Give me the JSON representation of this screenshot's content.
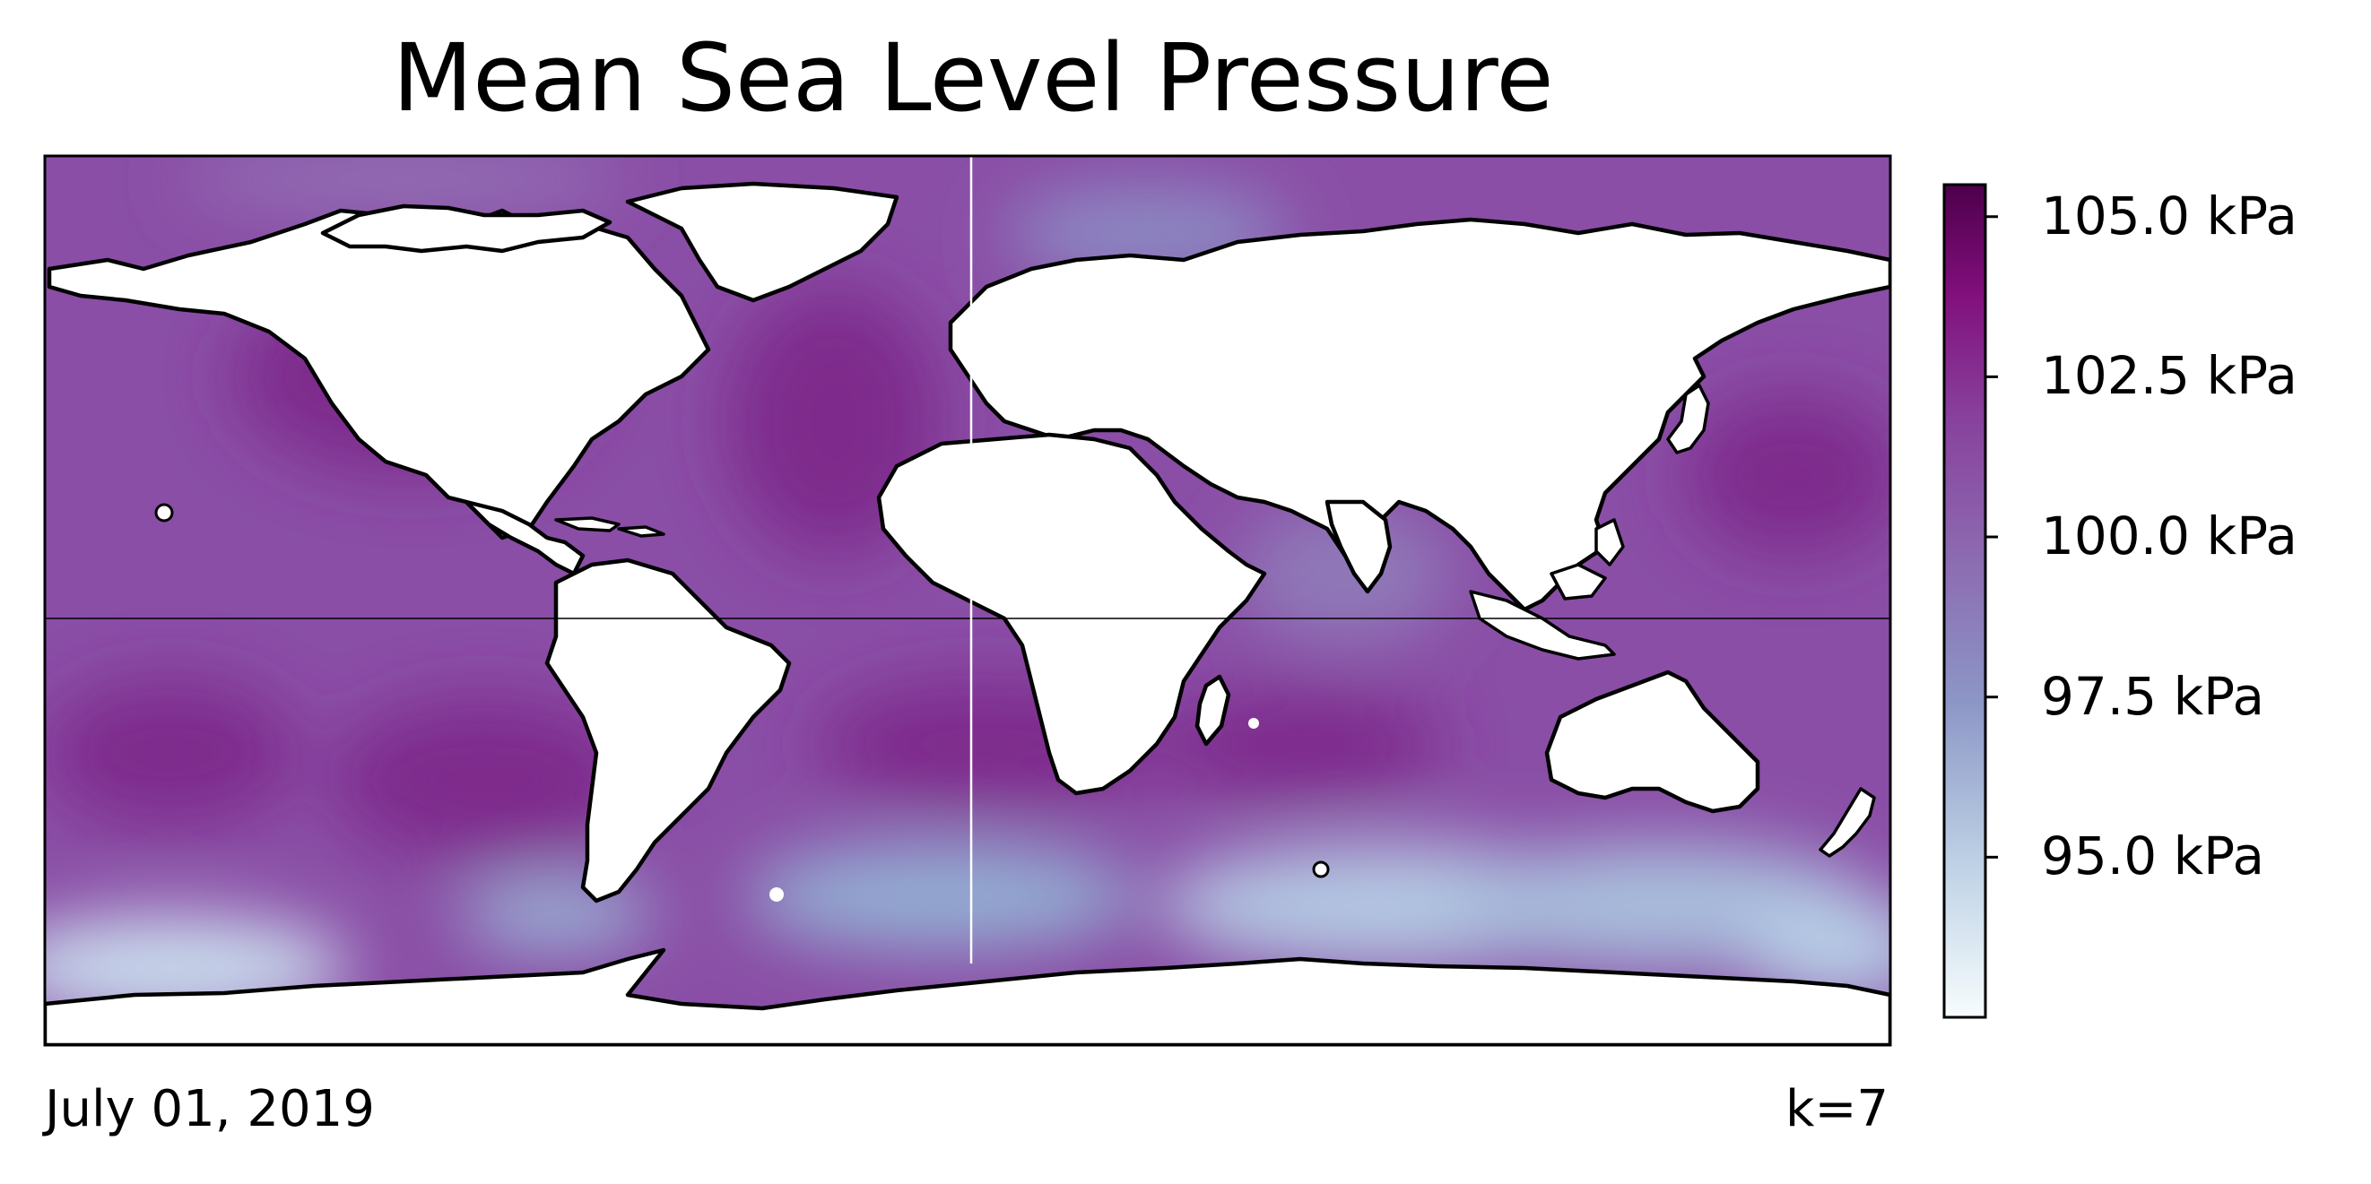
{
  "figure": {
    "title": "Mean Sea Level Pressure",
    "date": "July 01, 2019",
    "k_label": "k=7"
  },
  "map": {
    "projection": "plate-carree",
    "field": "mean sea level pressure",
    "land_fill": "#ffffff",
    "coastline_color": "#000000",
    "land_halo_color": "#ffffff",
    "equator_line": true,
    "prime_meridian_line": true
  },
  "colorbar": {
    "colormap": "BuPu",
    "colors": [
      "#f7fcfd",
      "#bfd3e6",
      "#8c96c6",
      "#8c6bb1",
      "#88419d",
      "#810f7c",
      "#4d004b"
    ],
    "ticks": [
      {
        "value": 105.0,
        "label": "105.0 kPa"
      },
      {
        "value": 102.5,
        "label": "102.5 kPa"
      },
      {
        "value": 100.0,
        "label": "100.0 kPa"
      },
      {
        "value": 97.5,
        "label": "97.5 kPa"
      },
      {
        "value": 95.0,
        "label": "95.0 kPa"
      }
    ],
    "range_kpa": [
      92.5,
      105.5
    ]
  }
}
